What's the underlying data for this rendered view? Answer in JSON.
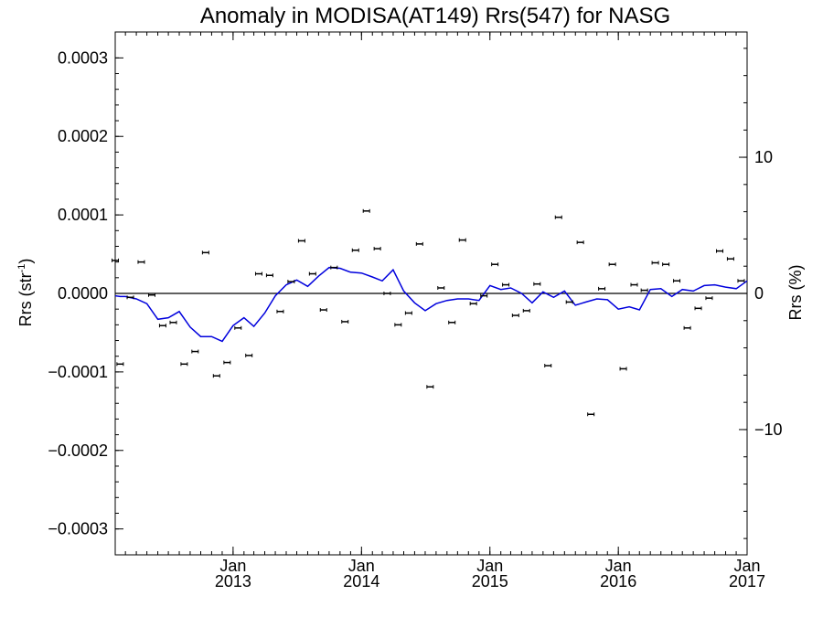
{
  "chart_data": {
    "type": "line",
    "title": "Anomaly in MODISA(AT149) Rrs(547) for NASG",
    "ylabel": "Rrs (str",
    "ylabel_sup": "-1",
    "ylabel_close": ")",
    "ylabel_right": "Rrs (%)",
    "ylim": [
      -0.000333,
      0.000333
    ],
    "ylim_right": [
      -19.2,
      19.2
    ],
    "x_range": [
      "2012-02-01",
      "2017-01-01"
    ],
    "y_ticks": [
      "0.0003",
      "0.0002",
      "0.0001",
      "0.0000",
      "−0.0001",
      "−0.0002",
      "−0.0003"
    ],
    "y_tick_values": [
      0.0003,
      0.0002,
      0.0001,
      0.0,
      -0.0001,
      -0.0002,
      -0.0003
    ],
    "y_ticks_right": [
      "10",
      "0",
      "−10"
    ],
    "y_tick_values_right": [
      10,
      0,
      -10
    ],
    "x_ticks": [
      {
        "month": "Jan",
        "year": "2013",
        "date": "2013-01-01"
      },
      {
        "month": "Jan",
        "year": "2014",
        "date": "2014-01-01"
      },
      {
        "month": "Jan",
        "year": "2015",
        "date": "2015-01-01"
      },
      {
        "month": "Jan",
        "year": "2016",
        "date": "2016-01-01"
      },
      {
        "month": "Jan",
        "year": "2017",
        "date": "2017-01-01"
      }
    ],
    "zero_line": 0,
    "series": [
      {
        "style": "line",
        "color": "#0000dd",
        "points": [
          [
            "2012-02-01",
            -3e-06
          ],
          [
            "2012-02-15",
            -4e-06
          ],
          [
            "2012-03-01",
            -4e-06
          ],
          [
            "2012-04-01",
            -7e-06
          ],
          [
            "2012-05-01",
            -1.3e-05
          ],
          [
            "2012-06-01",
            -3.3e-05
          ],
          [
            "2012-07-01",
            -3.1e-05
          ],
          [
            "2012-08-01",
            -2.3e-05
          ],
          [
            "2012-09-01",
            -4.3e-05
          ],
          [
            "2012-10-01",
            -5.5e-05
          ],
          [
            "2012-11-01",
            -5.5e-05
          ],
          [
            "2012-12-01",
            -6.1e-05
          ],
          [
            "2013-01-01",
            -4.1e-05
          ],
          [
            "2013-02-01",
            -3.1e-05
          ],
          [
            "2013-03-01",
            -4.2e-05
          ],
          [
            "2013-04-01",
            -2.5e-05
          ],
          [
            "2013-05-01",
            -3e-06
          ],
          [
            "2013-06-01",
            1.1e-05
          ],
          [
            "2013-07-01",
            1.7e-05
          ],
          [
            "2013-08-01",
            9e-06
          ],
          [
            "2013-09-01",
            2.2e-05
          ],
          [
            "2013-10-01",
            3.3e-05
          ],
          [
            "2013-11-01",
            3.2e-05
          ],
          [
            "2013-12-01",
            2.7e-05
          ],
          [
            "2014-01-01",
            2.6e-05
          ],
          [
            "2014-02-01",
            2.1e-05
          ],
          [
            "2014-03-01",
            1.6e-05
          ],
          [
            "2014-04-01",
            3e-05
          ],
          [
            "2014-05-01",
            3e-06
          ],
          [
            "2014-06-01",
            -1.2e-05
          ],
          [
            "2014-07-01",
            -2.2e-05
          ],
          [
            "2014-08-01",
            -1.3e-05
          ],
          [
            "2014-09-01",
            -9e-06
          ],
          [
            "2014-10-01",
            -7e-06
          ],
          [
            "2014-11-01",
            -7e-06
          ],
          [
            "2014-12-01",
            -9e-06
          ],
          [
            "2015-01-01",
            1e-05
          ],
          [
            "2015-02-01",
            5e-06
          ],
          [
            "2015-03-01",
            7e-06
          ],
          [
            "2015-04-01",
            0.0
          ],
          [
            "2015-05-01",
            -1.2e-05
          ],
          [
            "2015-06-01",
            2e-06
          ],
          [
            "2015-07-01",
            -5e-06
          ],
          [
            "2015-08-01",
            3e-06
          ],
          [
            "2015-09-01",
            -1.5e-05
          ],
          [
            "2015-10-01",
            -1.1e-05
          ],
          [
            "2015-11-01",
            -7e-06
          ],
          [
            "2015-12-01",
            -8e-06
          ],
          [
            "2016-01-01",
            -2e-05
          ],
          [
            "2016-02-01",
            -1.7e-05
          ],
          [
            "2016-03-01",
            -2.1e-05
          ],
          [
            "2016-04-01",
            5e-06
          ],
          [
            "2016-05-01",
            6e-06
          ],
          [
            "2016-06-01",
            -4e-06
          ],
          [
            "2016-07-01",
            5e-06
          ],
          [
            "2016-08-01",
            3e-06
          ],
          [
            "2016-09-01",
            1e-05
          ],
          [
            "2016-10-01",
            1.1e-05
          ],
          [
            "2016-11-01",
            8e-06
          ],
          [
            "2016-12-01",
            6e-06
          ],
          [
            "2017-01-01",
            1.6e-05
          ]
        ]
      },
      {
        "style": "errorbar",
        "color": "#000000",
        "points": [
          [
            "2012-02-01",
            4.2e-05
          ],
          [
            "2012-02-15",
            -9e-05
          ],
          [
            "2012-03-15",
            -5e-06
          ],
          [
            "2012-04-15",
            4e-05
          ],
          [
            "2012-05-15",
            -2e-06
          ],
          [
            "2012-06-15",
            -4.1e-05
          ],
          [
            "2012-07-15",
            -3.7e-05
          ],
          [
            "2012-08-15",
            -9e-05
          ],
          [
            "2012-09-15",
            -7.4e-05
          ],
          [
            "2012-10-15",
            5.2e-05
          ],
          [
            "2012-11-15",
            -0.000105
          ],
          [
            "2012-12-15",
            -8.8e-05
          ],
          [
            "2013-01-15",
            -4.4e-05
          ],
          [
            "2013-02-15",
            -7.9e-05
          ],
          [
            "2013-03-15",
            2.5e-05
          ],
          [
            "2013-04-15",
            2.3e-05
          ],
          [
            "2013-05-15",
            -2.3e-05
          ],
          [
            "2013-06-15",
            1.5e-05
          ],
          [
            "2013-07-15",
            6.7e-05
          ],
          [
            "2013-08-15",
            2.5e-05
          ],
          [
            "2013-09-15",
            -2.1e-05
          ],
          [
            "2013-10-15",
            3.3e-05
          ],
          [
            "2013-11-15",
            -3.6e-05
          ],
          [
            "2013-12-15",
            5.5e-05
          ],
          [
            "2014-01-15",
            0.000105
          ],
          [
            "2014-02-15",
            5.7e-05
          ],
          [
            "2014-03-15",
            0.0
          ],
          [
            "2014-04-15",
            -4e-05
          ],
          [
            "2014-05-15",
            -2.5e-05
          ],
          [
            "2014-06-15",
            6.3e-05
          ],
          [
            "2014-07-15",
            -0.000119
          ],
          [
            "2014-08-15",
            7e-06
          ],
          [
            "2014-09-15",
            -3.7e-05
          ],
          [
            "2014-10-15",
            6.8e-05
          ],
          [
            "2014-11-15",
            -1.3e-05
          ],
          [
            "2014-12-15",
            -3e-06
          ],
          [
            "2015-01-15",
            3.7e-05
          ],
          [
            "2015-02-15",
            1.1e-05
          ],
          [
            "2015-03-15",
            -2.8e-05
          ],
          [
            "2015-04-15",
            -2.2e-05
          ],
          [
            "2015-05-15",
            1.2e-05
          ],
          [
            "2015-06-15",
            -9.2e-05
          ],
          [
            "2015-07-15",
            9.7e-05
          ],
          [
            "2015-08-15",
            -1.1e-05
          ],
          [
            "2015-09-15",
            6.5e-05
          ],
          [
            "2015-10-15",
            -0.000154
          ],
          [
            "2015-11-15",
            6e-06
          ],
          [
            "2015-12-15",
            3.7e-05
          ],
          [
            "2016-01-15",
            -9.6e-05
          ],
          [
            "2016-02-15",
            1.1e-05
          ],
          [
            "2016-03-15",
            4e-06
          ],
          [
            "2016-04-15",
            3.9e-05
          ],
          [
            "2016-05-15",
            3.7e-05
          ],
          [
            "2016-06-15",
            1.6e-05
          ],
          [
            "2016-07-15",
            -4.4e-05
          ],
          [
            "2016-08-15",
            -1.9e-05
          ],
          [
            "2016-09-15",
            -6e-06
          ],
          [
            "2016-10-15",
            5.4e-05
          ],
          [
            "2016-11-15",
            4.4e-05
          ],
          [
            "2016-12-15",
            1.6e-05
          ]
        ]
      }
    ]
  }
}
